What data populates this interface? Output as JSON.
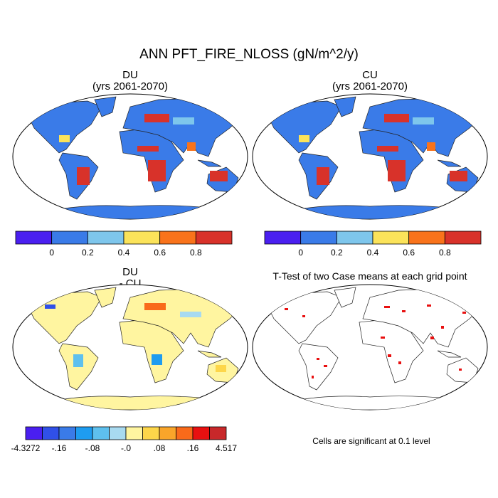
{
  "title": "ANN PFT_FIRE_NLOSS (gN/m^2/y)",
  "panels": [
    {
      "title": "DU",
      "subtitle": "(yrs 2061-2070)",
      "land_color": "#3a7be8",
      "colorbar": {
        "colors": [
          "#4a1ff0",
          "#3a7be8",
          "#7ec6ec",
          "#fbe35a",
          "#f9731b",
          "#d8322a"
        ],
        "labels": [
          "0",
          "0.2",
          "0.4",
          "0.6",
          "0.8"
        ]
      }
    },
    {
      "title": "CU",
      "subtitle": "(yrs 2061-2070)",
      "land_color": "#3a7be8",
      "colorbar": {
        "colors": [
          "#4a1ff0",
          "#3a7be8",
          "#7ec6ec",
          "#fbe35a",
          "#f9731b",
          "#d8322a"
        ],
        "labels": [
          "0",
          "0.2",
          "0.4",
          "0.6",
          "0.8"
        ]
      }
    },
    {
      "title": "DU",
      "subtitle": "- CU",
      "land_color": "#fff5a0",
      "colorbar": {
        "colors": [
          "#4a1ff0",
          "#3050e8",
          "#3a7be8",
          "#1e9cf0",
          "#5ec0ee",
          "#a8daf0",
          "#fff5a0",
          "#fdd64a",
          "#f9a52a",
          "#f96a1a",
          "#e81010",
          "#c8282a"
        ],
        "labels": [
          "-4.3272",
          "-.16",
          "-.08",
          "-.0",
          ".08",
          ".16",
          "4.517"
        ]
      }
    },
    {
      "title": "T-Test of two Case means at each grid point",
      "land_color": "#ffffff",
      "note": "Cells are significant at 0.1 level"
    }
  ]
}
